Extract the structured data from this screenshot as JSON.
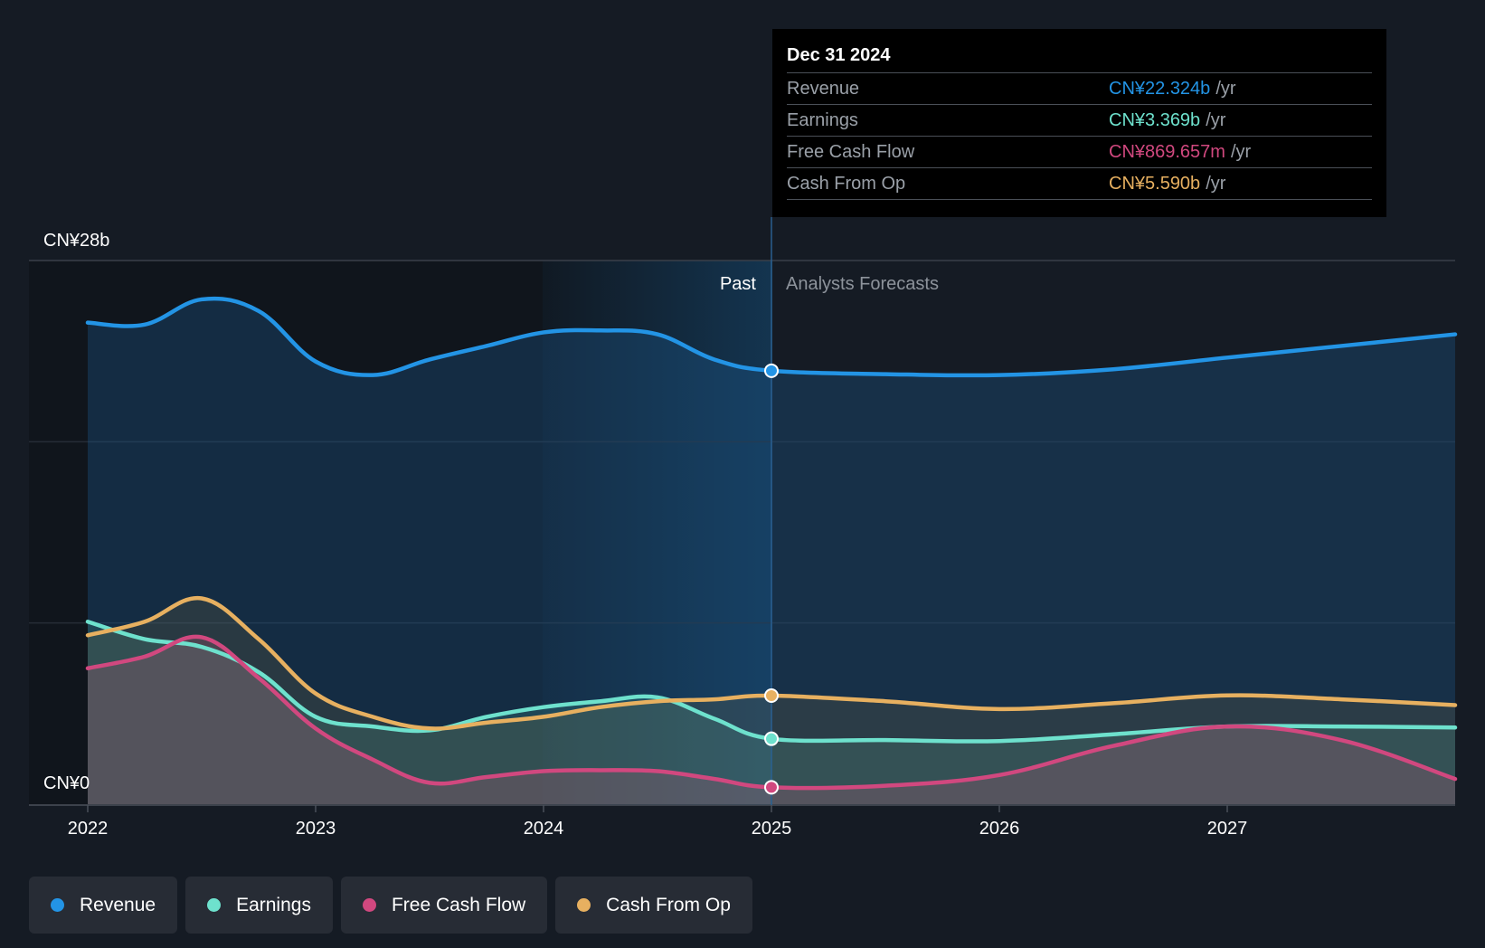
{
  "chart_data": {
    "type": "line",
    "x_ticks": [
      "2022",
      "2023",
      "2024",
      "2025",
      "2026",
      "2027"
    ],
    "y_tick_labels": [
      "CN¥28b",
      "CN¥0"
    ],
    "ylim": [
      0,
      28
    ],
    "xlim": [
      2022.0,
      2028.0
    ],
    "past_label": "Past",
    "forecast_label": "Analysts Forecasts",
    "divider_x": 2025.0,
    "series": [
      {
        "name": "Revenue",
        "color": "#2394e5",
        "x": [
          2022.0,
          2022.25,
          2022.5,
          2022.75,
          2023.0,
          2023.25,
          2023.5,
          2023.75,
          2024.0,
          2024.25,
          2024.5,
          2024.75,
          2025.0,
          2025.5,
          2026.0,
          2026.5,
          2027.0,
          2027.5,
          2028.0
        ],
        "y": [
          24.8,
          24.7,
          26.0,
          25.4,
          22.8,
          22.1,
          22.9,
          23.6,
          24.3,
          24.4,
          24.2,
          22.9,
          22.324,
          22.15,
          22.1,
          22.4,
          23.0,
          23.6,
          24.2
        ]
      },
      {
        "name": "Earnings",
        "color": "#6ee1cd",
        "x": [
          2022.0,
          2022.25,
          2022.5,
          2022.75,
          2023.0,
          2023.25,
          2023.5,
          2023.75,
          2024.0,
          2024.25,
          2024.5,
          2024.75,
          2025.0,
          2025.5,
          2026.0,
          2026.5,
          2027.0,
          2027.5,
          2028.0
        ],
        "y": [
          9.4,
          8.5,
          8.1,
          6.8,
          4.5,
          4.0,
          3.8,
          4.5,
          5.0,
          5.3,
          5.5,
          4.4,
          3.369,
          3.3,
          3.25,
          3.6,
          4.0,
          4.0,
          3.95
        ]
      },
      {
        "name": "Free Cash Flow",
        "color": "#d1487f",
        "x": [
          2022.0,
          2022.25,
          2022.5,
          2022.75,
          2023.0,
          2023.25,
          2023.5,
          2023.75,
          2024.0,
          2024.25,
          2024.5,
          2024.75,
          2025.0,
          2025.5,
          2026.0,
          2026.5,
          2027.0,
          2027.5,
          2028.0
        ],
        "y": [
          7.0,
          7.6,
          8.6,
          6.5,
          3.9,
          2.3,
          1.1,
          1.4,
          1.7,
          1.75,
          1.7,
          1.3,
          0.87,
          0.95,
          1.5,
          3.0,
          4.0,
          3.3,
          1.3
        ]
      },
      {
        "name": "Cash From Op",
        "color": "#e7b060",
        "x": [
          2022.0,
          2022.25,
          2022.5,
          2022.75,
          2023.0,
          2023.25,
          2023.5,
          2023.75,
          2024.0,
          2024.25,
          2024.5,
          2024.75,
          2025.0,
          2025.5,
          2026.0,
          2026.5,
          2027.0,
          2027.5,
          2028.0
        ],
        "y": [
          8.7,
          9.4,
          10.6,
          8.5,
          5.7,
          4.5,
          3.9,
          4.2,
          4.5,
          5.0,
          5.3,
          5.4,
          5.59,
          5.3,
          4.9,
          5.2,
          5.6,
          5.4,
          5.1
        ]
      }
    ]
  },
  "tooltip": {
    "date": "Dec 31 2024",
    "unit": "/yr",
    "rows": [
      {
        "name": "Revenue",
        "value": "CN¥22.324b",
        "color": "#2394e5"
      },
      {
        "name": "Earnings",
        "value": "CN¥3.369b",
        "color": "#6ee1cd"
      },
      {
        "name": "Free Cash Flow",
        "value": "CN¥869.657m",
        "color": "#d1487f"
      },
      {
        "name": "Cash From Op",
        "value": "CN¥5.590b",
        "color": "#e7b060"
      }
    ]
  },
  "legend": [
    {
      "label": "Revenue",
      "color": "#2394e5"
    },
    {
      "label": "Earnings",
      "color": "#6ee1cd"
    },
    {
      "label": "Free Cash Flow",
      "color": "#d1487f"
    },
    {
      "label": "Cash From Op",
      "color": "#e7b060"
    }
  ]
}
